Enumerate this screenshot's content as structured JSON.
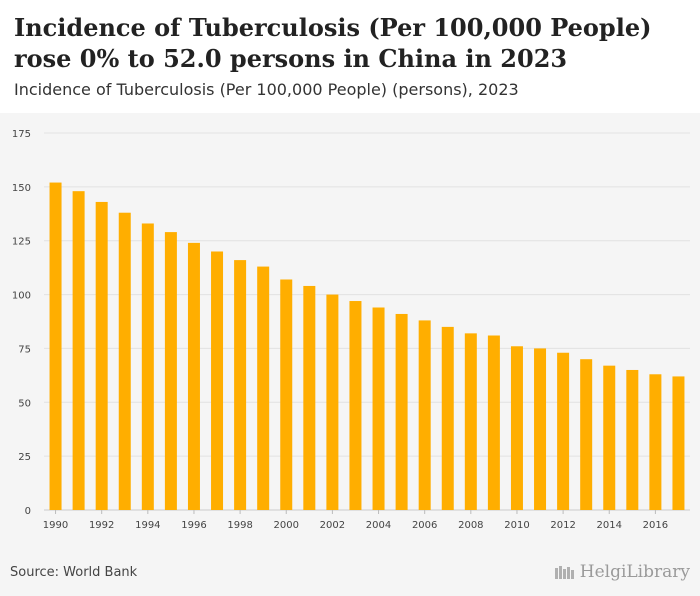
{
  "header": {
    "title": "Incidence of Tuberculosis (Per 100,000 People) rose 0% to 52.0 persons in China in 2023",
    "subtitle": "Incidence of Tuberculosis (Per 100,000 People) (persons), 2023"
  },
  "footer": {
    "source": "Source: World Bank",
    "logo_text": "HelgiLibrary"
  },
  "colors": {
    "bar": "#FFAE00",
    "grid": "#e2e2e2",
    "axis_text": "#444444"
  },
  "chart_data": {
    "type": "bar",
    "title": "Incidence of Tuberculosis (Per 100,000 People) rose 0% to 52.0 persons in China in 2023",
    "subtitle": "Incidence of Tuberculosis (Per 100,000 People) (persons), 2023",
    "xlabel": "",
    "ylabel": "",
    "ylim": [
      0,
      175
    ],
    "yticks": [
      0,
      25,
      50,
      75,
      100,
      125,
      150,
      175
    ],
    "categories": [
      "1990",
      "1991",
      "1992",
      "1993",
      "1994",
      "1995",
      "1996",
      "1997",
      "1998",
      "1999",
      "2000",
      "2001",
      "2002",
      "2003",
      "2004",
      "2005",
      "2006",
      "2007",
      "2008",
      "2009",
      "2010",
      "2011",
      "2012",
      "2013",
      "2014",
      "2015",
      "2016",
      "2017"
    ],
    "xtick_labels": [
      "1990",
      "1992",
      "1994",
      "1996",
      "1998",
      "2000",
      "2002",
      "2004",
      "2006",
      "2008",
      "2010",
      "2012",
      "2014",
      "2016"
    ],
    "values": [
      152,
      148,
      143,
      138,
      133,
      129,
      124,
      120,
      116,
      113,
      107,
      104,
      100,
      97,
      94,
      91,
      88,
      85,
      82,
      81,
      76,
      75,
      73,
      70,
      67,
      65,
      63,
      62
    ]
  }
}
